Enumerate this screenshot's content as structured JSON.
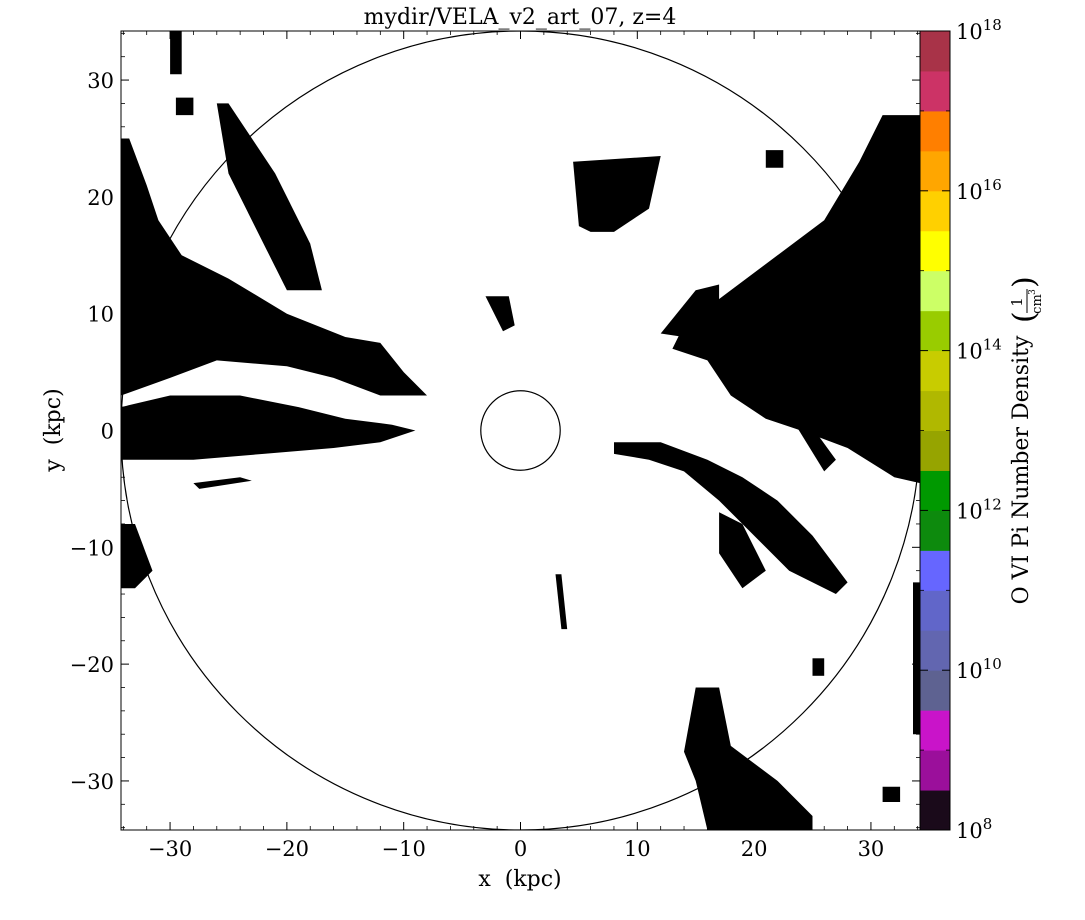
{
  "chart_data": {
    "type": "heatmap",
    "title": "mydir/VELA_v2_art_07, z=4",
    "xlabel": "x  (kpc)",
    "ylabel": "y  (kpc)",
    "xlim": [
      -34.2,
      34.2
    ],
    "ylim": [
      -34.2,
      34.2
    ],
    "xticks": [
      -30,
      -20,
      -10,
      0,
      10,
      20,
      30
    ],
    "yticks": [
      -30,
      -20,
      -10,
      0,
      10,
      20,
      30
    ],
    "xtick_labels": [
      "−30",
      "−20",
      "−10",
      "0",
      "10",
      "20",
      "30"
    ],
    "ytick_labels": [
      "−30",
      "−20",
      "−10",
      "0",
      "10",
      "20",
      "30"
    ],
    "circles": [
      {
        "cx": 0,
        "cy": 0,
        "r": 34.2
      },
      {
        "cx": 0,
        "cy": 0,
        "r": 3.4
      }
    ],
    "black_regions": [
      {
        "name": "top-left-streak",
        "poly": [
          [
            -30,
            34.2
          ],
          [
            -29,
            34.2
          ],
          [
            -29,
            30.5
          ],
          [
            -30,
            30.5
          ]
        ]
      },
      {
        "name": "top-left-speck",
        "poly": [
          [
            -29.5,
            28.5
          ],
          [
            -28,
            28.5
          ],
          [
            -28,
            27
          ],
          [
            -29.5,
            27
          ]
        ]
      },
      {
        "name": "left-upper-filament",
        "poly": [
          [
            -34.2,
            25
          ],
          [
            -33.5,
            25
          ],
          [
            -32,
            21
          ],
          [
            -31,
            18
          ],
          [
            -29,
            15
          ],
          [
            -25,
            13
          ],
          [
            -20,
            10
          ],
          [
            -15,
            8
          ],
          [
            -12,
            7.5
          ],
          [
            -10,
            5
          ],
          [
            -8,
            3
          ],
          [
            -12,
            3
          ],
          [
            -16,
            4.5
          ],
          [
            -20,
            5.5
          ],
          [
            -26,
            6
          ],
          [
            -30,
            4.5
          ],
          [
            -34.2,
            3
          ]
        ]
      },
      {
        "name": "left-mid-filament",
        "poly": [
          [
            -34.2,
            2
          ],
          [
            -30,
            3
          ],
          [
            -24,
            3
          ],
          [
            -19,
            2
          ],
          [
            -15,
            1
          ],
          [
            -11,
            0.5
          ],
          [
            -9,
            0
          ],
          [
            -12,
            -1
          ],
          [
            -16,
            -1.5
          ],
          [
            -22,
            -2
          ],
          [
            -28,
            -2.5
          ],
          [
            -34.2,
            -2.5
          ]
        ]
      },
      {
        "name": "left-lower-streak",
        "poly": [
          [
            -28,
            -4.5
          ],
          [
            -24,
            -4
          ],
          [
            -23,
            -4.3
          ],
          [
            -27.5,
            -5
          ]
        ]
      },
      {
        "name": "left-edge-lower",
        "poly": [
          [
            -34.2,
            -8
          ],
          [
            -33,
            -8
          ],
          [
            -31.5,
            -12
          ],
          [
            -33,
            -13.5
          ],
          [
            -34.2,
            -13.5
          ]
        ]
      },
      {
        "name": "diag-band-upper-left",
        "poly": [
          [
            -26,
            28
          ],
          [
            -25,
            28
          ],
          [
            -21,
            22
          ],
          [
            -18,
            16
          ],
          [
            -17,
            12
          ],
          [
            -20,
            12
          ],
          [
            -22,
            16
          ],
          [
            -25,
            22
          ]
        ]
      },
      {
        "name": "right-upper-mass",
        "poly": [
          [
            34.2,
            27
          ],
          [
            31,
            27
          ],
          [
            29,
            23
          ],
          [
            26,
            18
          ],
          [
            22,
            15
          ],
          [
            18,
            12
          ],
          [
            14,
            9
          ],
          [
            13,
            7
          ],
          [
            16,
            6
          ],
          [
            18,
            3
          ],
          [
            21,
            1
          ],
          [
            24,
            0
          ],
          [
            28,
            -1.5
          ],
          [
            32,
            -4
          ],
          [
            34.2,
            -4.5
          ]
        ]
      },
      {
        "name": "right-mid-filament",
        "poly": [
          [
            8,
            -1
          ],
          [
            12,
            -1
          ],
          [
            16,
            -2.5
          ],
          [
            19,
            -4
          ],
          [
            22,
            -6
          ],
          [
            25,
            -9
          ],
          [
            28,
            -13
          ],
          [
            27,
            -14
          ],
          [
            23,
            -12
          ],
          [
            20,
            -9
          ],
          [
            17,
            -6
          ],
          [
            14,
            -3.5
          ],
          [
            11,
            -2.5
          ],
          [
            8,
            -2
          ]
        ]
      },
      {
        "name": "right-diag-streak",
        "poly": [
          [
            17,
            -7
          ],
          [
            19,
            -8
          ],
          [
            21,
            -12
          ],
          [
            19,
            -13.5
          ],
          [
            17,
            -10.5
          ]
        ]
      },
      {
        "name": "right-diag-streak-2",
        "poly": [
          [
            22,
            3
          ],
          [
            23,
            3
          ],
          [
            27,
            -2.5
          ],
          [
            26,
            -3.5
          ]
        ]
      },
      {
        "name": "upper-blob",
        "poly": [
          [
            4.5,
            23
          ],
          [
            12,
            23.5
          ],
          [
            11,
            19
          ],
          [
            8,
            17
          ],
          [
            6,
            17
          ],
          [
            5,
            17.5
          ]
        ]
      },
      {
        "name": "upper-blob-small",
        "poly": [
          [
            21,
            24
          ],
          [
            22.5,
            24
          ],
          [
            22.5,
            22.5
          ],
          [
            21,
            22.5
          ]
        ]
      },
      {
        "name": "upper-right-filament",
        "poly": [
          [
            15,
            12
          ],
          [
            17,
            12.5
          ],
          [
            17,
            10.5
          ],
          [
            14,
            8
          ],
          [
            12,
            8.3
          ]
        ]
      },
      {
        "name": "bottom-right-mass",
        "poly": [
          [
            15,
            -22
          ],
          [
            17,
            -22
          ],
          [
            18,
            -27
          ],
          [
            22,
            -30
          ],
          [
            25,
            -33
          ],
          [
            25,
            -34.2
          ],
          [
            16,
            -34.2
          ],
          [
            15,
            -30
          ],
          [
            14,
            -27.5
          ]
        ]
      },
      {
        "name": "right-edge-strip",
        "poly": [
          [
            34.2,
            -13
          ],
          [
            33.6,
            -13
          ],
          [
            33.6,
            -26
          ],
          [
            34.2,
            -26
          ]
        ]
      },
      {
        "name": "right-edge-speck",
        "poly": [
          [
            31,
            -30.5
          ],
          [
            32.5,
            -30.5
          ],
          [
            32.5,
            -31.8
          ],
          [
            31,
            -31.8
          ]
        ]
      },
      {
        "name": "small-blob-right",
        "poly": [
          [
            25,
            -19.5
          ],
          [
            26,
            -19.5
          ],
          [
            26,
            -21
          ],
          [
            25,
            -21
          ]
        ]
      },
      {
        "name": "mid-center-fil",
        "poly": [
          [
            -3,
            11.5
          ],
          [
            -1,
            11.5
          ],
          [
            -0.5,
            9
          ],
          [
            -1.5,
            8.5
          ]
        ]
      },
      {
        "name": "lower-fil",
        "poly": [
          [
            3,
            -12.3
          ],
          [
            3.5,
            -12.3
          ],
          [
            4,
            -17
          ],
          [
            3.5,
            -17
          ]
        ]
      }
    ],
    "colorbar": {
      "label": "O VI Pi Number Density",
      "unit_numerator": "1",
      "unit_denominator": "cm",
      "unit_exponent": "3",
      "range_log": [
        8,
        18
      ],
      "tick_mantissa": "10",
      "tick_exponents": [
        "8",
        "10",
        "12",
        "14",
        "16",
        "18"
      ],
      "colors": [
        "#1a0a1a",
        "#9b0f9b",
        "#c914c9",
        "#5e6291",
        "#6266b0",
        "#6166c9",
        "#6666ff",
        "#0d8a0d",
        "#009900",
        "#96a400",
        "#b0b800",
        "#c8cc00",
        "#99cc00",
        "#ccff66",
        "#ffff00",
        "#ffd000",
        "#ffa600",
        "#ff7f00",
        "#cc3366",
        "#a83348"
      ]
    }
  }
}
